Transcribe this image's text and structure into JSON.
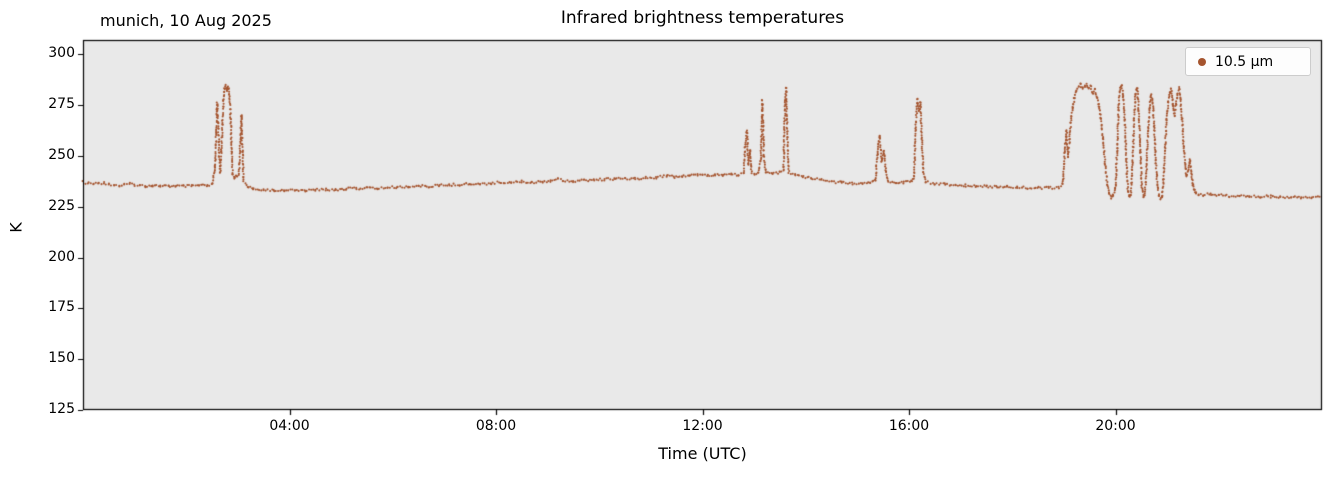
{
  "chart_data": {
    "type": "scatter",
    "title": "Infrared brightness temperatures",
    "subtitle": "munich, 10 Aug 2025",
    "xlabel": "Time (UTC)",
    "ylabel": "K",
    "legend": {
      "label": "10.5 µm",
      "position": "upper right"
    },
    "grid": false,
    "plot_bg_color": "#e9e9e9",
    "figure_bg_color": "#ffffff",
    "xlim_hours": [
      0,
      24
    ],
    "ylim": [
      125,
      307
    ],
    "y_ticks": [
      125,
      150,
      175,
      200,
      225,
      250,
      275,
      300
    ],
    "x_ticks": [
      {
        "hour": 4,
        "label": "04:00"
      },
      {
        "hour": 8,
        "label": "08:00"
      },
      {
        "hour": 12,
        "label": "12:00"
      },
      {
        "hour": 16,
        "label": "16:00"
      },
      {
        "hour": 20,
        "label": "20:00"
      }
    ],
    "noise_amplitude_K": 0.6,
    "marker_radius_px": 1.05,
    "series": [
      {
        "name": "10.5 µm",
        "color": "#a5542e",
        "points": [
          [
            0.0,
            237
          ],
          [
            0.1,
            236.5
          ],
          [
            0.2,
            236.2
          ],
          [
            0.3,
            236.5
          ],
          [
            0.4,
            236.8
          ],
          [
            0.5,
            236.3
          ],
          [
            0.6,
            235.6
          ],
          [
            0.7,
            235.3
          ],
          [
            0.8,
            235.8
          ],
          [
            0.9,
            236.2
          ],
          [
            1.0,
            235.8
          ],
          [
            1.1,
            235.4
          ],
          [
            1.2,
            235.2
          ],
          [
            1.35,
            235.5
          ],
          [
            1.5,
            235.2
          ],
          [
            1.65,
            235.0
          ],
          [
            1.8,
            235.3
          ],
          [
            1.95,
            235.0
          ],
          [
            2.1,
            235.2
          ],
          [
            2.25,
            235.4
          ],
          [
            2.4,
            235.2
          ],
          [
            2.5,
            235.8
          ],
          [
            2.56,
            245
          ],
          [
            2.58,
            262
          ],
          [
            2.6,
            276
          ],
          [
            2.62,
            266
          ],
          [
            2.64,
            250
          ],
          [
            2.66,
            242
          ],
          [
            2.68,
            252
          ],
          [
            2.7,
            266
          ],
          [
            2.72,
            277
          ],
          [
            2.74,
            283
          ],
          [
            2.76,
            284.5
          ],
          [
            2.78,
            282
          ],
          [
            2.8,
            284
          ],
          [
            2.82,
            283
          ],
          [
            2.84,
            278
          ],
          [
            2.86,
            268
          ],
          [
            2.88,
            252
          ],
          [
            2.9,
            241
          ],
          [
            2.94,
            239
          ],
          [
            2.98,
            240.5
          ],
          [
            3.02,
            241
          ],
          [
            3.05,
            258
          ],
          [
            3.07,
            270
          ],
          [
            3.09,
            252
          ],
          [
            3.11,
            238
          ],
          [
            3.2,
            235
          ],
          [
            3.3,
            233.8
          ],
          [
            3.5,
            233.4
          ],
          [
            3.7,
            233.2
          ],
          [
            3.9,
            233.0
          ],
          [
            4.1,
            233.2
          ],
          [
            4.3,
            233.0
          ],
          [
            4.5,
            233.3
          ],
          [
            4.7,
            233.5
          ],
          [
            4.9,
            233.4
          ],
          [
            5.1,
            233.8
          ],
          [
            5.3,
            234.0
          ],
          [
            5.5,
            234.2
          ],
          [
            5.7,
            234.0
          ],
          [
            5.9,
            234.4
          ],
          [
            6.1,
            234.6
          ],
          [
            6.3,
            234.9
          ],
          [
            6.5,
            235.1
          ],
          [
            6.7,
            235.0
          ],
          [
            6.9,
            235.4
          ],
          [
            7.1,
            235.7
          ],
          [
            7.3,
            235.9
          ],
          [
            7.5,
            236.2
          ],
          [
            7.7,
            236.0
          ],
          [
            7.9,
            236.6
          ],
          [
            8.1,
            236.9
          ],
          [
            8.3,
            237.1
          ],
          [
            8.5,
            237.3
          ],
          [
            8.7,
            237.0
          ],
          [
            8.9,
            237.4
          ],
          [
            9.05,
            237.8
          ],
          [
            9.2,
            238.6
          ],
          [
            9.3,
            238.0
          ],
          [
            9.5,
            237.6
          ],
          [
            9.7,
            237.9
          ],
          [
            9.9,
            238.2
          ],
          [
            10.1,
            238.4
          ],
          [
            10.3,
            238.8
          ],
          [
            10.5,
            238.5
          ],
          [
            10.7,
            238.9
          ],
          [
            10.9,
            239.1
          ],
          [
            11.1,
            239.4
          ],
          [
            11.3,
            240.3
          ],
          [
            11.45,
            239.6
          ],
          [
            11.6,
            239.9
          ],
          [
            11.75,
            240.2
          ],
          [
            11.9,
            240.8
          ],
          [
            12.0,
            241.2
          ],
          [
            12.1,
            240.4
          ],
          [
            12.25,
            240.8
          ],
          [
            12.4,
            240.6
          ],
          [
            12.55,
            241.0
          ],
          [
            12.7,
            240.7
          ],
          [
            12.8,
            241.5
          ],
          [
            12.83,
            256
          ],
          [
            12.86,
            262
          ],
          [
            12.89,
            246
          ],
          [
            12.92,
            253
          ],
          [
            12.95,
            242
          ],
          [
            13.0,
            241.2
          ],
          [
            13.08,
            241.6
          ],
          [
            13.13,
            248
          ],
          [
            13.16,
            277
          ],
          [
            13.19,
            250
          ],
          [
            13.23,
            241.8
          ],
          [
            13.35,
            241.4
          ],
          [
            13.5,
            241.8
          ],
          [
            13.57,
            243
          ],
          [
            13.6,
            276
          ],
          [
            13.62,
            283
          ],
          [
            13.64,
            262
          ],
          [
            13.67,
            242
          ],
          [
            13.8,
            240.6
          ],
          [
            13.95,
            239.8
          ],
          [
            14.1,
            239.0
          ],
          [
            14.3,
            238.2
          ],
          [
            14.5,
            237.4
          ],
          [
            14.7,
            236.8
          ],
          [
            14.9,
            236.4
          ],
          [
            15.1,
            236.2
          ],
          [
            15.25,
            236.6
          ],
          [
            15.35,
            238
          ],
          [
            15.39,
            251
          ],
          [
            15.43,
            260
          ],
          [
            15.47,
            247
          ],
          [
            15.51,
            252.5
          ],
          [
            15.55,
            243
          ],
          [
            15.6,
            237.5
          ],
          [
            15.75,
            236.8
          ],
          [
            15.9,
            237.0
          ],
          [
            16.05,
            237.6
          ],
          [
            16.1,
            240
          ],
          [
            16.13,
            263
          ],
          [
            16.16,
            277.5
          ],
          [
            16.19,
            272
          ],
          [
            16.22,
            276
          ],
          [
            16.25,
            258
          ],
          [
            16.28,
            242
          ],
          [
            16.33,
            237.2
          ],
          [
            16.5,
            236.4
          ],
          [
            16.7,
            236.0
          ],
          [
            16.9,
            235.7
          ],
          [
            17.1,
            235.4
          ],
          [
            17.3,
            235.2
          ],
          [
            17.5,
            235.0
          ],
          [
            17.7,
            234.8
          ],
          [
            17.9,
            234.9
          ],
          [
            18.1,
            234.6
          ],
          [
            18.3,
            234.4
          ],
          [
            18.5,
            234.3
          ],
          [
            18.7,
            234.2
          ],
          [
            18.9,
            234.4
          ],
          [
            18.98,
            236
          ],
          [
            19.02,
            252
          ],
          [
            19.05,
            262
          ],
          [
            19.08,
            250
          ],
          [
            19.11,
            258
          ],
          [
            19.14,
            268
          ],
          [
            19.17,
            274
          ],
          [
            19.2,
            278
          ],
          [
            19.24,
            282
          ],
          [
            19.28,
            284
          ],
          [
            19.32,
            285
          ],
          [
            19.36,
            283.5
          ],
          [
            19.4,
            284.5
          ],
          [
            19.44,
            285
          ],
          [
            19.48,
            283
          ],
          [
            19.52,
            284
          ],
          [
            19.56,
            281
          ],
          [
            19.6,
            282.5
          ],
          [
            19.64,
            279
          ],
          [
            19.68,
            274
          ],
          [
            19.72,
            268
          ],
          [
            19.76,
            258
          ],
          [
            19.8,
            246
          ],
          [
            19.84,
            236
          ],
          [
            19.88,
            231
          ],
          [
            19.92,
            229.5
          ],
          [
            19.96,
            231
          ],
          [
            20.0,
            234
          ],
          [
            20.03,
            252
          ],
          [
            20.06,
            274
          ],
          [
            20.09,
            283
          ],
          [
            20.12,
            284.5
          ],
          [
            20.15,
            280
          ],
          [
            20.18,
            268
          ],
          [
            20.21,
            248
          ],
          [
            20.24,
            233
          ],
          [
            20.27,
            229.8
          ],
          [
            20.3,
            231
          ],
          [
            20.33,
            246
          ],
          [
            20.36,
            268
          ],
          [
            20.39,
            281
          ],
          [
            20.42,
            283.5
          ],
          [
            20.45,
            272
          ],
          [
            20.48,
            252
          ],
          [
            20.51,
            235
          ],
          [
            20.54,
            229.8
          ],
          [
            20.57,
            231
          ],
          [
            20.6,
            243
          ],
          [
            20.63,
            262
          ],
          [
            20.66,
            274
          ],
          [
            20.69,
            280
          ],
          [
            20.72,
            276
          ],
          [
            20.75,
            264
          ],
          [
            20.78,
            248
          ],
          [
            20.81,
            236
          ],
          [
            20.84,
            230.5
          ],
          [
            20.87,
            229.2
          ],
          [
            20.9,
            229.8
          ],
          [
            20.93,
            238
          ],
          [
            20.96,
            254
          ],
          [
            20.99,
            268
          ],
          [
            21.02,
            276
          ],
          [
            21.05,
            281
          ],
          [
            21.08,
            283
          ],
          [
            21.11,
            276
          ],
          [
            21.14,
            270
          ],
          [
            21.17,
            275
          ],
          [
            21.2,
            281
          ],
          [
            21.23,
            283.5
          ],
          [
            21.26,
            278
          ],
          [
            21.29,
            268
          ],
          [
            21.32,
            255
          ],
          [
            21.35,
            246
          ],
          [
            21.38,
            240
          ],
          [
            21.41,
            243
          ],
          [
            21.44,
            248
          ],
          [
            21.47,
            241
          ],
          [
            21.5,
            236
          ],
          [
            21.53,
            233
          ],
          [
            21.56,
            231.5
          ],
          [
            21.6,
            230.5
          ],
          [
            21.7,
            230.8
          ],
          [
            21.85,
            231.2
          ],
          [
            22.0,
            230.6
          ],
          [
            22.2,
            230.3
          ],
          [
            22.4,
            230.1
          ],
          [
            22.6,
            230.0
          ],
          [
            22.8,
            229.9
          ],
          [
            23.0,
            230.0
          ],
          [
            23.2,
            229.8
          ],
          [
            23.4,
            229.6
          ],
          [
            23.6,
            229.5
          ],
          [
            23.8,
            229.5
          ],
          [
            23.95,
            229.6
          ]
        ]
      }
    ]
  }
}
